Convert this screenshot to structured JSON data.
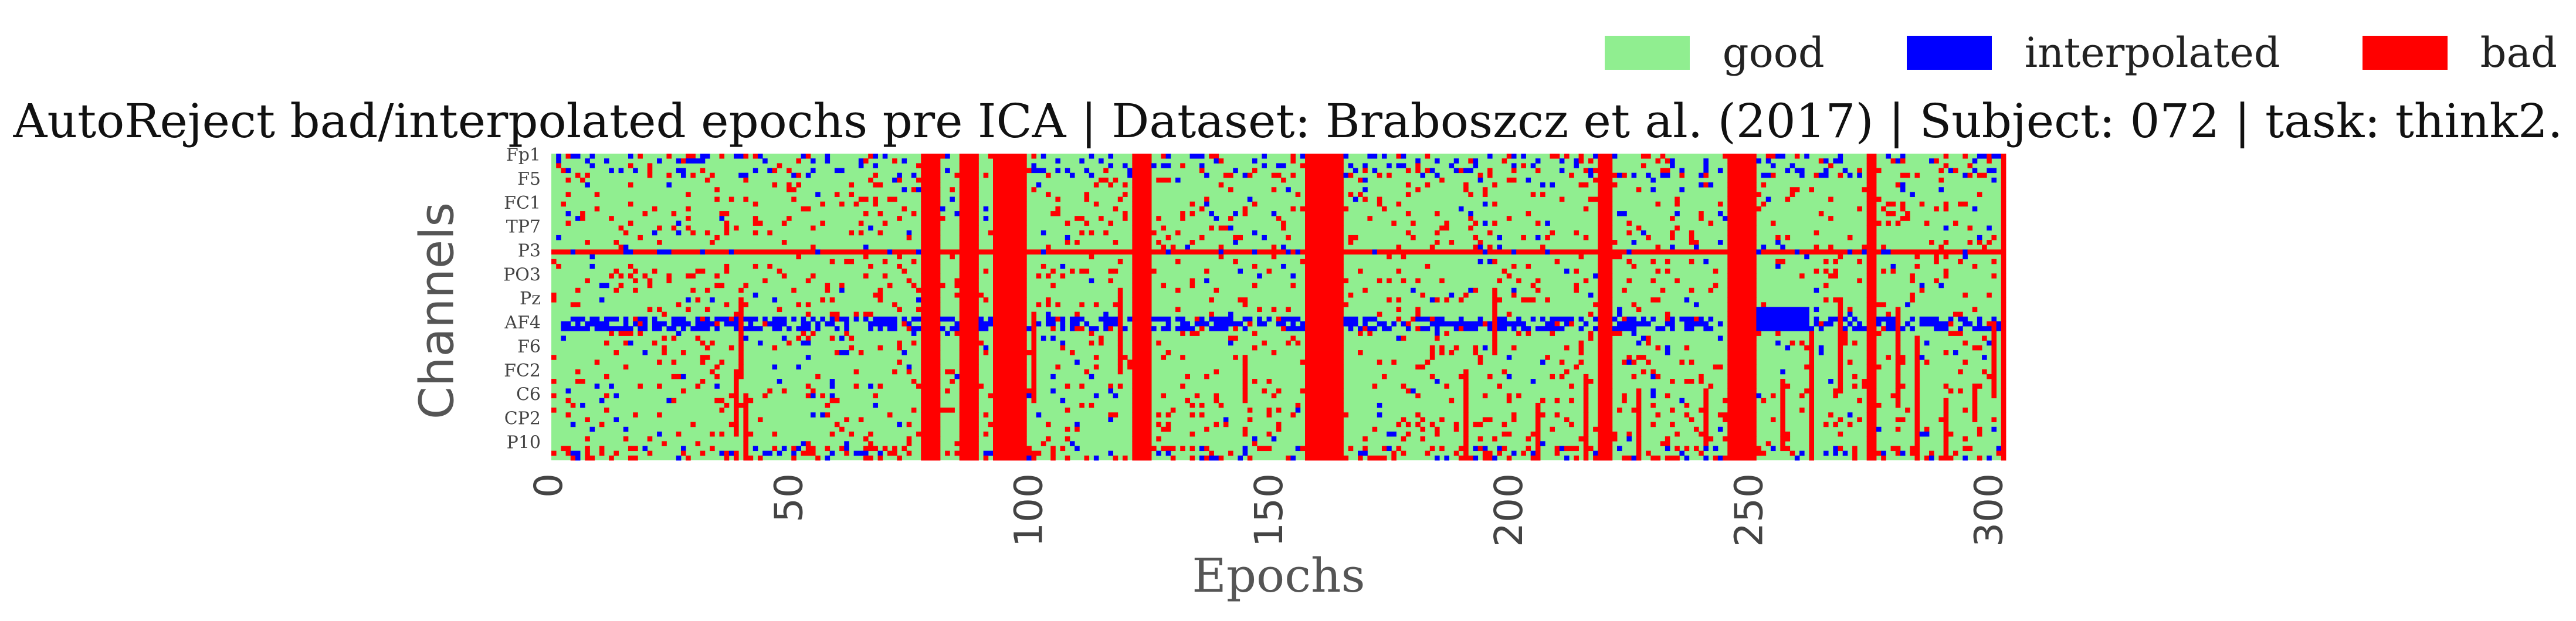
{
  "chart_data": {
    "type": "heatmap",
    "title": "AutoReject bad/interpolated epochs pre ICA | Dataset: Braboszcz et al. (2017) | Subject: 072 | task: think2.",
    "xlabel": "Epochs",
    "ylabel": "Channels",
    "xlim": [
      0,
      303
    ],
    "x_ticks": [
      0,
      50,
      100,
      150,
      200,
      250,
      300
    ],
    "n_epochs": 303,
    "n_channels": 64,
    "channel_tick_labels": [
      "Fp1",
      "F5",
      "FC1",
      "TP7",
      "P3",
      "PO3",
      "Pz",
      "AF4",
      "F6",
      "FC2",
      "C6",
      "CP2",
      "P10"
    ],
    "channel_tick_label_rows": [
      0,
      5,
      10,
      15,
      20,
      25,
      30,
      35,
      40,
      45,
      50,
      55,
      60
    ],
    "legend": {
      "placement": "top-right",
      "entries": [
        {
          "label": "good",
          "color": "#90ee90"
        },
        {
          "label": "interpolated",
          "color": "#0000ff"
        },
        {
          "label": "bad",
          "color": "#ff0000"
        }
      ]
    },
    "fully_bad_epochs": [
      77,
      78,
      79,
      80,
      85,
      86,
      87,
      88,
      92,
      93,
      94,
      95,
      96,
      97,
      98,
      121,
      122,
      123,
      124,
      157,
      158,
      159,
      160,
      161,
      162,
      163,
      164,
      218,
      219,
      220,
      245,
      246,
      247,
      248,
      249,
      250,
      274,
      275,
      302
    ],
    "bad_channel_rows": [
      20
    ],
    "interpolated_channel_band_rows": [
      34,
      35,
      36
    ]
  }
}
